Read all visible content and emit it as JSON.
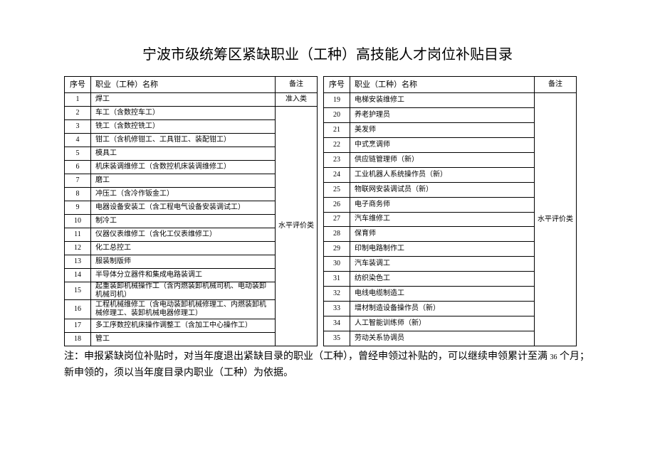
{
  "title": "宁波市级统筹区紧缺职业（工种）高技能人才岗位补贴目录",
  "headers": {
    "seq": "序号",
    "name": "职业（工种）名称",
    "note": "备注"
  },
  "left_note_1": "准入类",
  "left_note_2": "水平评价类",
  "right_note": "水平评价类",
  "left_rows": [
    {
      "seq": "1",
      "name": "焊工"
    },
    {
      "seq": "2",
      "name": "车工（含数控车工）"
    },
    {
      "seq": "3",
      "name": "铣工（含数控铣工）"
    },
    {
      "seq": "4",
      "name": "钳工（含机修钳工、工具钳工、装配钳工）"
    },
    {
      "seq": "5",
      "name": "模具工"
    },
    {
      "seq": "6",
      "name": "机床装调维修工（含数控机床装调维修工）"
    },
    {
      "seq": "7",
      "name": "磨工"
    },
    {
      "seq": "8",
      "name": "冲压工（含冷作钣金工）"
    },
    {
      "seq": "9",
      "name": "电器设备安装工（含工程电气设备安装调试工）"
    },
    {
      "seq": "10",
      "name": "制冷工"
    },
    {
      "seq": "11",
      "name": "仪器仪表维修工（含化工仪表维修工）"
    },
    {
      "seq": "12",
      "name": "化工总控工"
    },
    {
      "seq": "13",
      "name": "服装制版师"
    },
    {
      "seq": "14",
      "name": "半导体分立器件和集成电路装调工"
    },
    {
      "seq": "15",
      "name": "起重装卸机械操作工（含内燃装卸机械司机、电动装卸机械司机）"
    },
    {
      "seq": "16",
      "name": "工程机械维修工（含电动装卸机械修理工、内燃装卸机械修理工、装卸机械电器修理工）"
    },
    {
      "seq": "17",
      "name": "多工序数控机床操作调整工（含加工中心操作工）"
    },
    {
      "seq": "18",
      "name": "管工"
    }
  ],
  "right_rows": [
    {
      "seq": "19",
      "name": "电梯安装维修工"
    },
    {
      "seq": "20",
      "name": "养老护理员"
    },
    {
      "seq": "21",
      "name": "美发师"
    },
    {
      "seq": "22",
      "name": "中式烹调师"
    },
    {
      "seq": "23",
      "name": "供应链管理师（新）"
    },
    {
      "seq": "24",
      "name": "工业机器人系统操作员（新）"
    },
    {
      "seq": "25",
      "name": "物联网安装调试员（新）"
    },
    {
      "seq": "26",
      "name": "电子商务师"
    },
    {
      "seq": "27",
      "name": "汽车维修工"
    },
    {
      "seq": "28",
      "name": "保育师"
    },
    {
      "seq": "29",
      "name": "印制电路制作工"
    },
    {
      "seq": "30",
      "name": "汽车装调工"
    },
    {
      "seq": "31",
      "name": "纺织染色工"
    },
    {
      "seq": "32",
      "name": "电线电缆制造工"
    },
    {
      "seq": "33",
      "name": "增材制造设备操作员（新）"
    },
    {
      "seq": "34",
      "name": "人工智能训练师（新）"
    },
    {
      "seq": "35",
      "name": "劳动关系协调员"
    }
  ],
  "footnote_parts": {
    "p1": "注：申报紧缺岗位补贴时，对当年度退出紧缺目录的职业（工种），曾经申领过补贴的，可以继续申领累计至满 ",
    "num": "36",
    "p2": " 个月；新申领的，须以当年度目录内职业（工种）为依据。"
  }
}
